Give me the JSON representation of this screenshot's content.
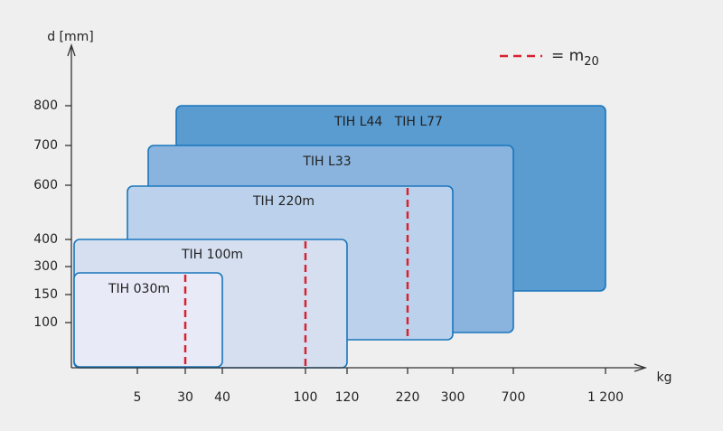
{
  "y_axis": {
    "label": "d [mm]",
    "ticks": [
      "800",
      "700",
      "600",
      "400",
      "300",
      "150",
      "100"
    ]
  },
  "x_axis": {
    "label": "kg",
    "ticks": [
      "5",
      "30",
      "40",
      "100",
      "120",
      "220",
      "300",
      "700",
      "1 200"
    ]
  },
  "legend": {
    "prefix": "= m",
    "subscript": "20"
  },
  "boxes": [
    {
      "label": "TIH L44   TIH L77"
    },
    {
      "label": "TIH L33"
    },
    {
      "label": "TIH 220m"
    },
    {
      "label": "TIH 100m"
    },
    {
      "label": "TIH 030m"
    }
  ]
}
